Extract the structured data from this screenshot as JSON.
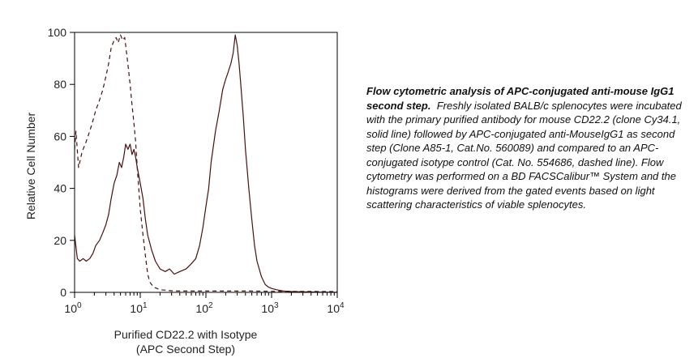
{
  "chart_data": {
    "type": "line",
    "xlabel_line1": "Purified CD22.2 with Isotype",
    "xlabel_line2": "(APC Second Step)",
    "ylabel": "Relative Cell Number",
    "xscale": "log",
    "xlim": [
      1,
      10000
    ],
    "ylim": [
      0,
      100
    ],
    "x_ticks": [
      {
        "base": "10",
        "exp": "0"
      },
      {
        "base": "10",
        "exp": "1"
      },
      {
        "base": "10",
        "exp": "2"
      },
      {
        "base": "10",
        "exp": "3"
      },
      {
        "base": "10",
        "exp": "4"
      }
    ],
    "y_ticks": [
      "0",
      "20",
      "40",
      "60",
      "80",
      "100"
    ],
    "series": [
      {
        "style": "solid",
        "color": "#4a1010",
        "x": [
          1,
          1.1,
          1.2,
          1.35,
          1.5,
          1.7,
          1.9,
          2.1,
          2.4,
          2.7,
          3.0,
          3.3,
          3.6,
          4.0,
          4.4,
          4.8,
          5.2,
          5.6,
          6.0,
          6.5,
          7.0,
          7.5,
          8.0,
          8.5,
          9.0,
          10,
          11,
          12,
          13,
          15,
          17,
          20,
          24,
          28,
          33,
          40,
          50,
          60,
          70,
          80,
          90,
          100,
          110,
          120,
          140,
          160,
          180,
          200,
          220,
          240,
          260,
          280,
          300,
          320,
          340,
          370,
          400,
          450,
          500,
          550,
          600,
          700,
          800,
          900,
          1000,
          1200,
          1500,
          2000,
          3000,
          5000,
          10000
        ],
        "y": [
          22,
          13,
          12,
          13,
          12,
          13,
          15,
          18,
          20,
          23,
          26,
          30,
          36,
          42,
          45,
          50,
          48,
          52,
          57,
          55,
          57,
          53,
          55,
          52,
          48,
          42,
          36,
          28,
          22,
          16,
          12,
          9,
          8,
          9,
          7,
          8,
          9,
          11,
          13,
          18,
          25,
          33,
          40,
          50,
          62,
          70,
          78,
          82,
          85,
          88,
          92,
          99,
          95,
          88,
          80,
          68,
          55,
          40,
          28,
          18,
          12,
          6,
          3,
          2,
          1.5,
          1,
          0.5,
          0.3,
          0.2,
          0.1,
          0
        ]
      },
      {
        "style": "dashed",
        "color": "#4a1010",
        "x": [
          1,
          1.05,
          1.15,
          1.3,
          1.5,
          1.7,
          1.9,
          2.1,
          2.4,
          2.7,
          3.0,
          3.3,
          3.6,
          4.0,
          4.3,
          4.6,
          5.0,
          5.4,
          5.8,
          6.2,
          6.6,
          7.0,
          7.5,
          8.0,
          8.5,
          9.0,
          10,
          11,
          12,
          13,
          14,
          16,
          18,
          20,
          25,
          30,
          40,
          60,
          100,
          200,
          500,
          1000,
          10000
        ],
        "y": [
          55,
          62,
          48,
          54,
          58,
          62,
          66,
          70,
          74,
          78,
          83,
          88,
          94,
          97,
          98,
          96,
          99,
          97,
          98,
          92,
          86,
          80,
          72,
          65,
          58,
          48,
          32,
          22,
          14,
          7,
          4,
          2,
          1.5,
          1,
          0.8,
          0.6,
          0.5,
          0.5,
          0.5,
          0.5,
          0.5,
          0.4,
          0.3
        ]
      }
    ]
  },
  "caption": {
    "title": "Flow cytometric analysis of APC-conjugated anti-mouse IgG1 second step.",
    "body": "Freshly isolated BALB/c splenocytes were incubated with the primary purified antibody for mouse CD22.2 (clone Cy34.1, solid line) followed by APC-conjugated anti-MouseIgG1 as second step (Clone A85-1, Cat.No. 560089) and compared to an APC-conjugated isotype control (Cat. No. 554686, dashed line). Flow cytometry was performed on a BD FACSCalibur™ System and the histograms were derived from the gated events based on light scattering characteristics of viable splenocytes."
  }
}
